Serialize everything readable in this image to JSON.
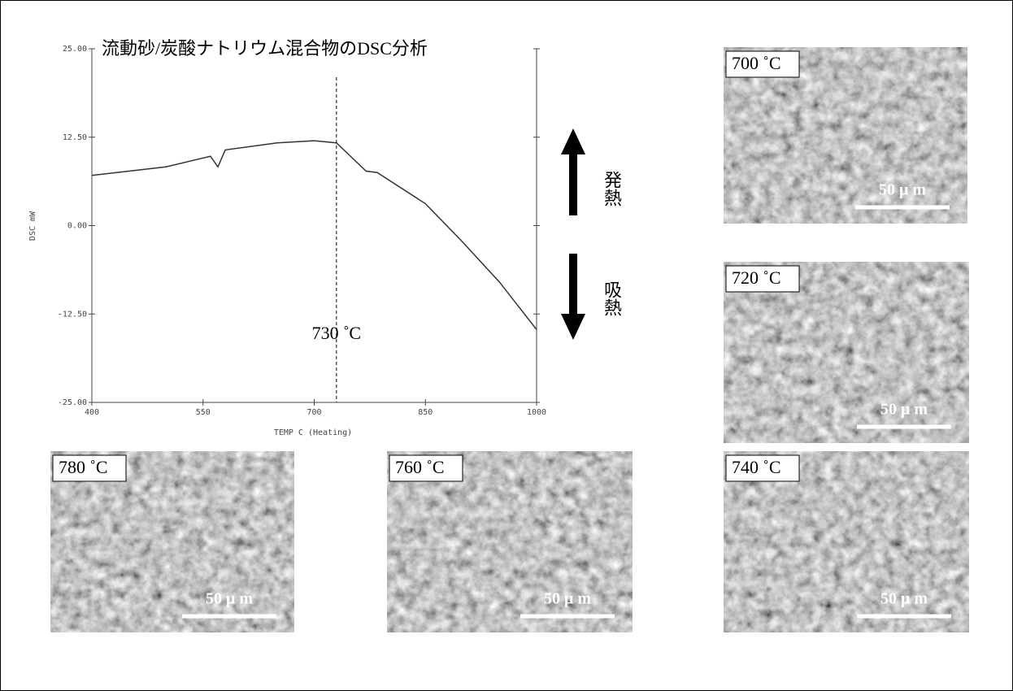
{
  "chart_data": {
    "type": "line",
    "title": "流動砂/炭酸ナトリウム混合物のDSC分析",
    "xlabel": "TEMP C (Heating)",
    "ylabel": "DSC mW",
    "x": [
      400,
      500,
      560,
      570,
      580,
      650,
      700,
      730,
      750,
      770,
      785,
      850,
      900,
      950,
      1000
    ],
    "values": [
      7.1,
      8.3,
      9.8,
      8.3,
      10.7,
      11.7,
      12.0,
      11.7,
      9.7,
      7.7,
      7.5,
      3.1,
      -2.3,
      -8.0,
      -14.7
    ],
    "color": "#333333",
    "xlim": [
      400,
      1000
    ],
    "xticks": [
      400,
      550,
      700,
      850,
      1000
    ],
    "ylim": [
      -25,
      25
    ],
    "yticks": [
      {
        "value": -25,
        "label": "-25.00"
      },
      {
        "value": -12.5,
        "label": "-12.50"
      },
      {
        "value": 0,
        "label": "0.00"
      },
      {
        "value": 12.5,
        "label": "12.50"
      },
      {
        "value": 25,
        "label": "25.00"
      }
    ],
    "annotations": [
      {
        "text": "730 ˚C",
        "x": 730
      }
    ],
    "arrow_labels": [
      "発熱",
      "吸熱"
    ]
  },
  "micrographs": [
    {
      "label": "700 ˚C",
      "scale": "50 μ m"
    },
    {
      "label": "720 ˚C",
      "scale": "50 μ m"
    },
    {
      "label": "740 ˚C",
      "scale": "50 μ m"
    },
    {
      "label": "780 ˚C",
      "scale": "50 μ m"
    },
    {
      "label": "760 ˚C",
      "scale": "50 μ m"
    }
  ]
}
